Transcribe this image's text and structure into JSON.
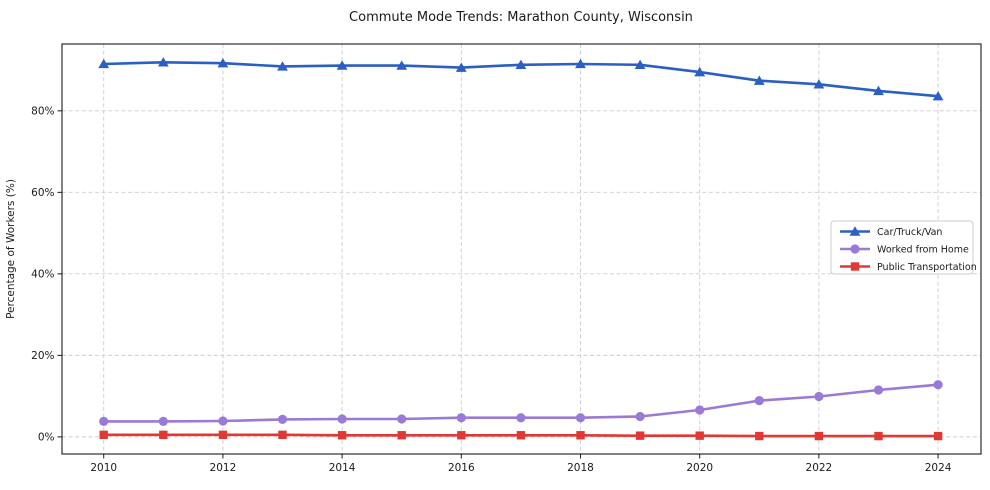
{
  "title": "Commute Mode Trends: Marathon County, Wisconsin",
  "chart_data": {
    "type": "line",
    "x": [
      2010,
      2011,
      2012,
      2013,
      2014,
      2015,
      2016,
      2017,
      2018,
      2019,
      2020,
      2021,
      2022,
      2023,
      2024
    ],
    "series": [
      {
        "name": "Car/Truck/Van",
        "color": "#2b5fc4",
        "marker": "triangle",
        "values": [
          91.5,
          91.9,
          91.7,
          90.9,
          91.1,
          91.1,
          90.6,
          91.3,
          91.5,
          91.3,
          89.5,
          87.4,
          86.5,
          84.9,
          83.6
        ]
      },
      {
        "name": "Worked from Home",
        "color": "#9a7ad6",
        "marker": "circle",
        "values": [
          3.8,
          3.8,
          3.9,
          4.3,
          4.4,
          4.4,
          4.7,
          4.7,
          4.7,
          5.0,
          6.6,
          8.9,
          9.9,
          11.5,
          12.8
        ]
      },
      {
        "name": "Public Transportation",
        "color": "#e03935",
        "marker": "square",
        "values": [
          0.5,
          0.5,
          0.5,
          0.5,
          0.4,
          0.4,
          0.4,
          0.4,
          0.4,
          0.3,
          0.3,
          0.2,
          0.2,
          0.2,
          0.2
        ]
      }
    ],
    "title": "Commute Mode Trends: Marathon County, Wisconsin",
    "xlabel": "",
    "ylabel": "Percentage of Workers (%)",
    "xticks": {
      "values": [
        2010,
        2012,
        2014,
        2016,
        2018,
        2020,
        2022,
        2024
      ],
      "labels": [
        "2010",
        "2012",
        "2014",
        "2016",
        "2018",
        "2020",
        "2022",
        "2024"
      ]
    },
    "yticks": {
      "values": [
        0,
        20,
        40,
        60,
        80
      ],
      "labels": [
        "0%",
        "20%",
        "40%",
        "60%",
        "80%"
      ]
    },
    "xlim": [
      2009.3,
      2024.72
    ],
    "ylim": [
      -4.2,
      96.4
    ],
    "grid": true,
    "legend_position": "center-right"
  },
  "style": {
    "grid_color": "#cdcdcd",
    "frame_color": "#1a1a1a",
    "legend_border": "#cccccc",
    "legend_bg": "#ffffff",
    "text_color": "#1a1a1a"
  }
}
